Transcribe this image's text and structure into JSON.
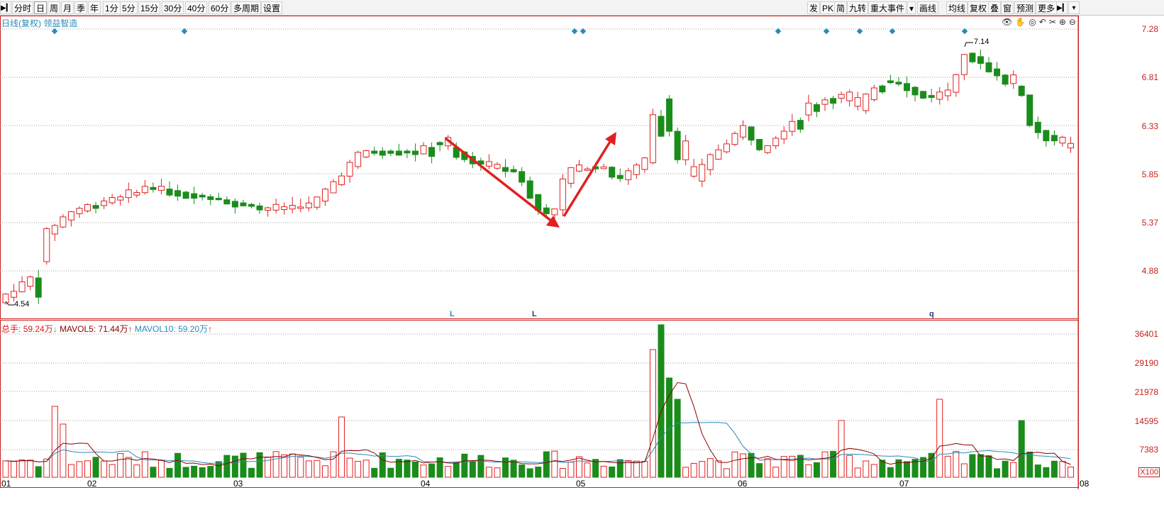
{
  "toolbar": {
    "left_items": [
      "分时",
      "日",
      "周",
      "月",
      "季",
      "年",
      "1分",
      "5分",
      "15分",
      "30分",
      "40分",
      "60分",
      "多周期",
      "设置"
    ],
    "active_item": "日",
    "right_items": [
      "发",
      "PK",
      "简",
      "九转",
      "重大事件",
      "▾",
      "画线",
      "均线",
      "复权",
      "叠",
      "窗",
      "预测",
      "更多"
    ]
  },
  "chart": {
    "title_prefix": "日线(复权)",
    "stock_name": "领益智造",
    "price_ticks": [
      "7.28",
      "6.81",
      "6.33",
      "5.85",
      "5.37",
      "4.88"
    ],
    "volume_ticks": [
      "36401",
      "29190",
      "21978",
      "14595",
      "7383"
    ],
    "volume_unit": "X100",
    "x_labels": [
      "01",
      "02",
      "03",
      "04",
      "05",
      "06",
      "07",
      "08"
    ],
    "high_label": "7.14",
    "low_label": "4.54",
    "markers": [
      "L",
      "L",
      "q"
    ],
    "volume_legend": {
      "total_label": "总手:",
      "total_value": "59.24万",
      "mavol5_label": "MAVOL5:",
      "mavol5_value": "71.44万",
      "mavol10_label": "MAVOL10:",
      "mavol10_value": "59.20万"
    }
  },
  "colors": {
    "up": "#e02020",
    "down": "#1a8c1a",
    "accent": "#2a8ab8",
    "ma5": "#8b0000",
    "ma10": "#2a8ab8"
  },
  "icons": {
    "left_nav": "collapse-left-icon",
    "right_nav": "collapse-right-icon"
  }
}
